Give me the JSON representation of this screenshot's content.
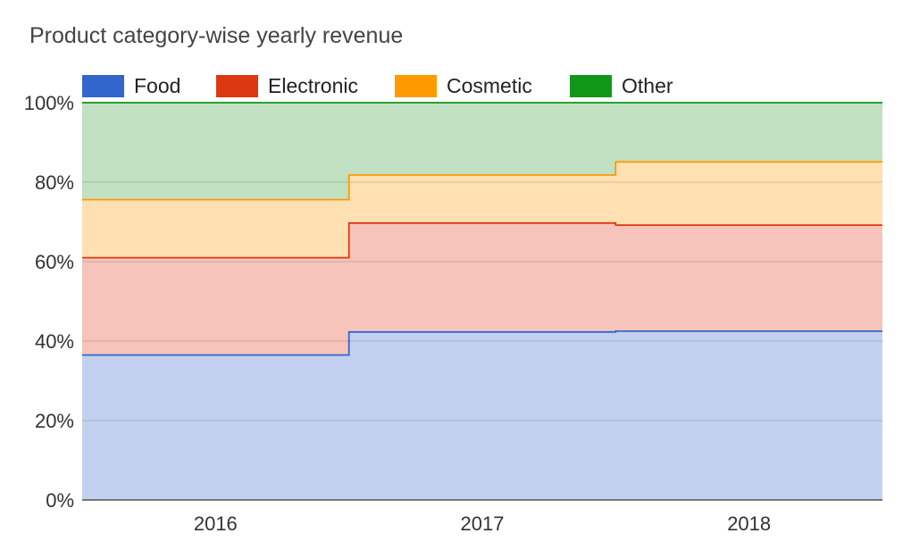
{
  "chart_data": {
    "type": "area",
    "stacked": "percent",
    "step": true,
    "title": "Product category-wise yearly revenue",
    "categories": [
      "2016",
      "2017",
      "2018"
    ],
    "series": [
      {
        "name": "Food",
        "color": "#3366cc",
        "fill": "#c2d1ef",
        "values": [
          36.5,
          42.3,
          42.5
        ]
      },
      {
        "name": "Electronic",
        "color": "#dc3912",
        "fill": "#f6c4bb",
        "values": [
          24.5,
          27.4,
          26.7
        ]
      },
      {
        "name": "Cosmetic",
        "color": "#ff9900",
        "fill": "#ffe0b3",
        "values": [
          14.6,
          12.1,
          15.9
        ]
      },
      {
        "name": "Other",
        "color": "#109618",
        "fill": "#c2e1c3",
        "values": [
          24.4,
          18.2,
          14.9
        ]
      }
    ],
    "y_ticks": [
      "0%",
      "20%",
      "40%",
      "60%",
      "80%",
      "100%"
    ],
    "ylim": [
      0,
      100
    ],
    "grid": true,
    "legend_position": "top"
  }
}
